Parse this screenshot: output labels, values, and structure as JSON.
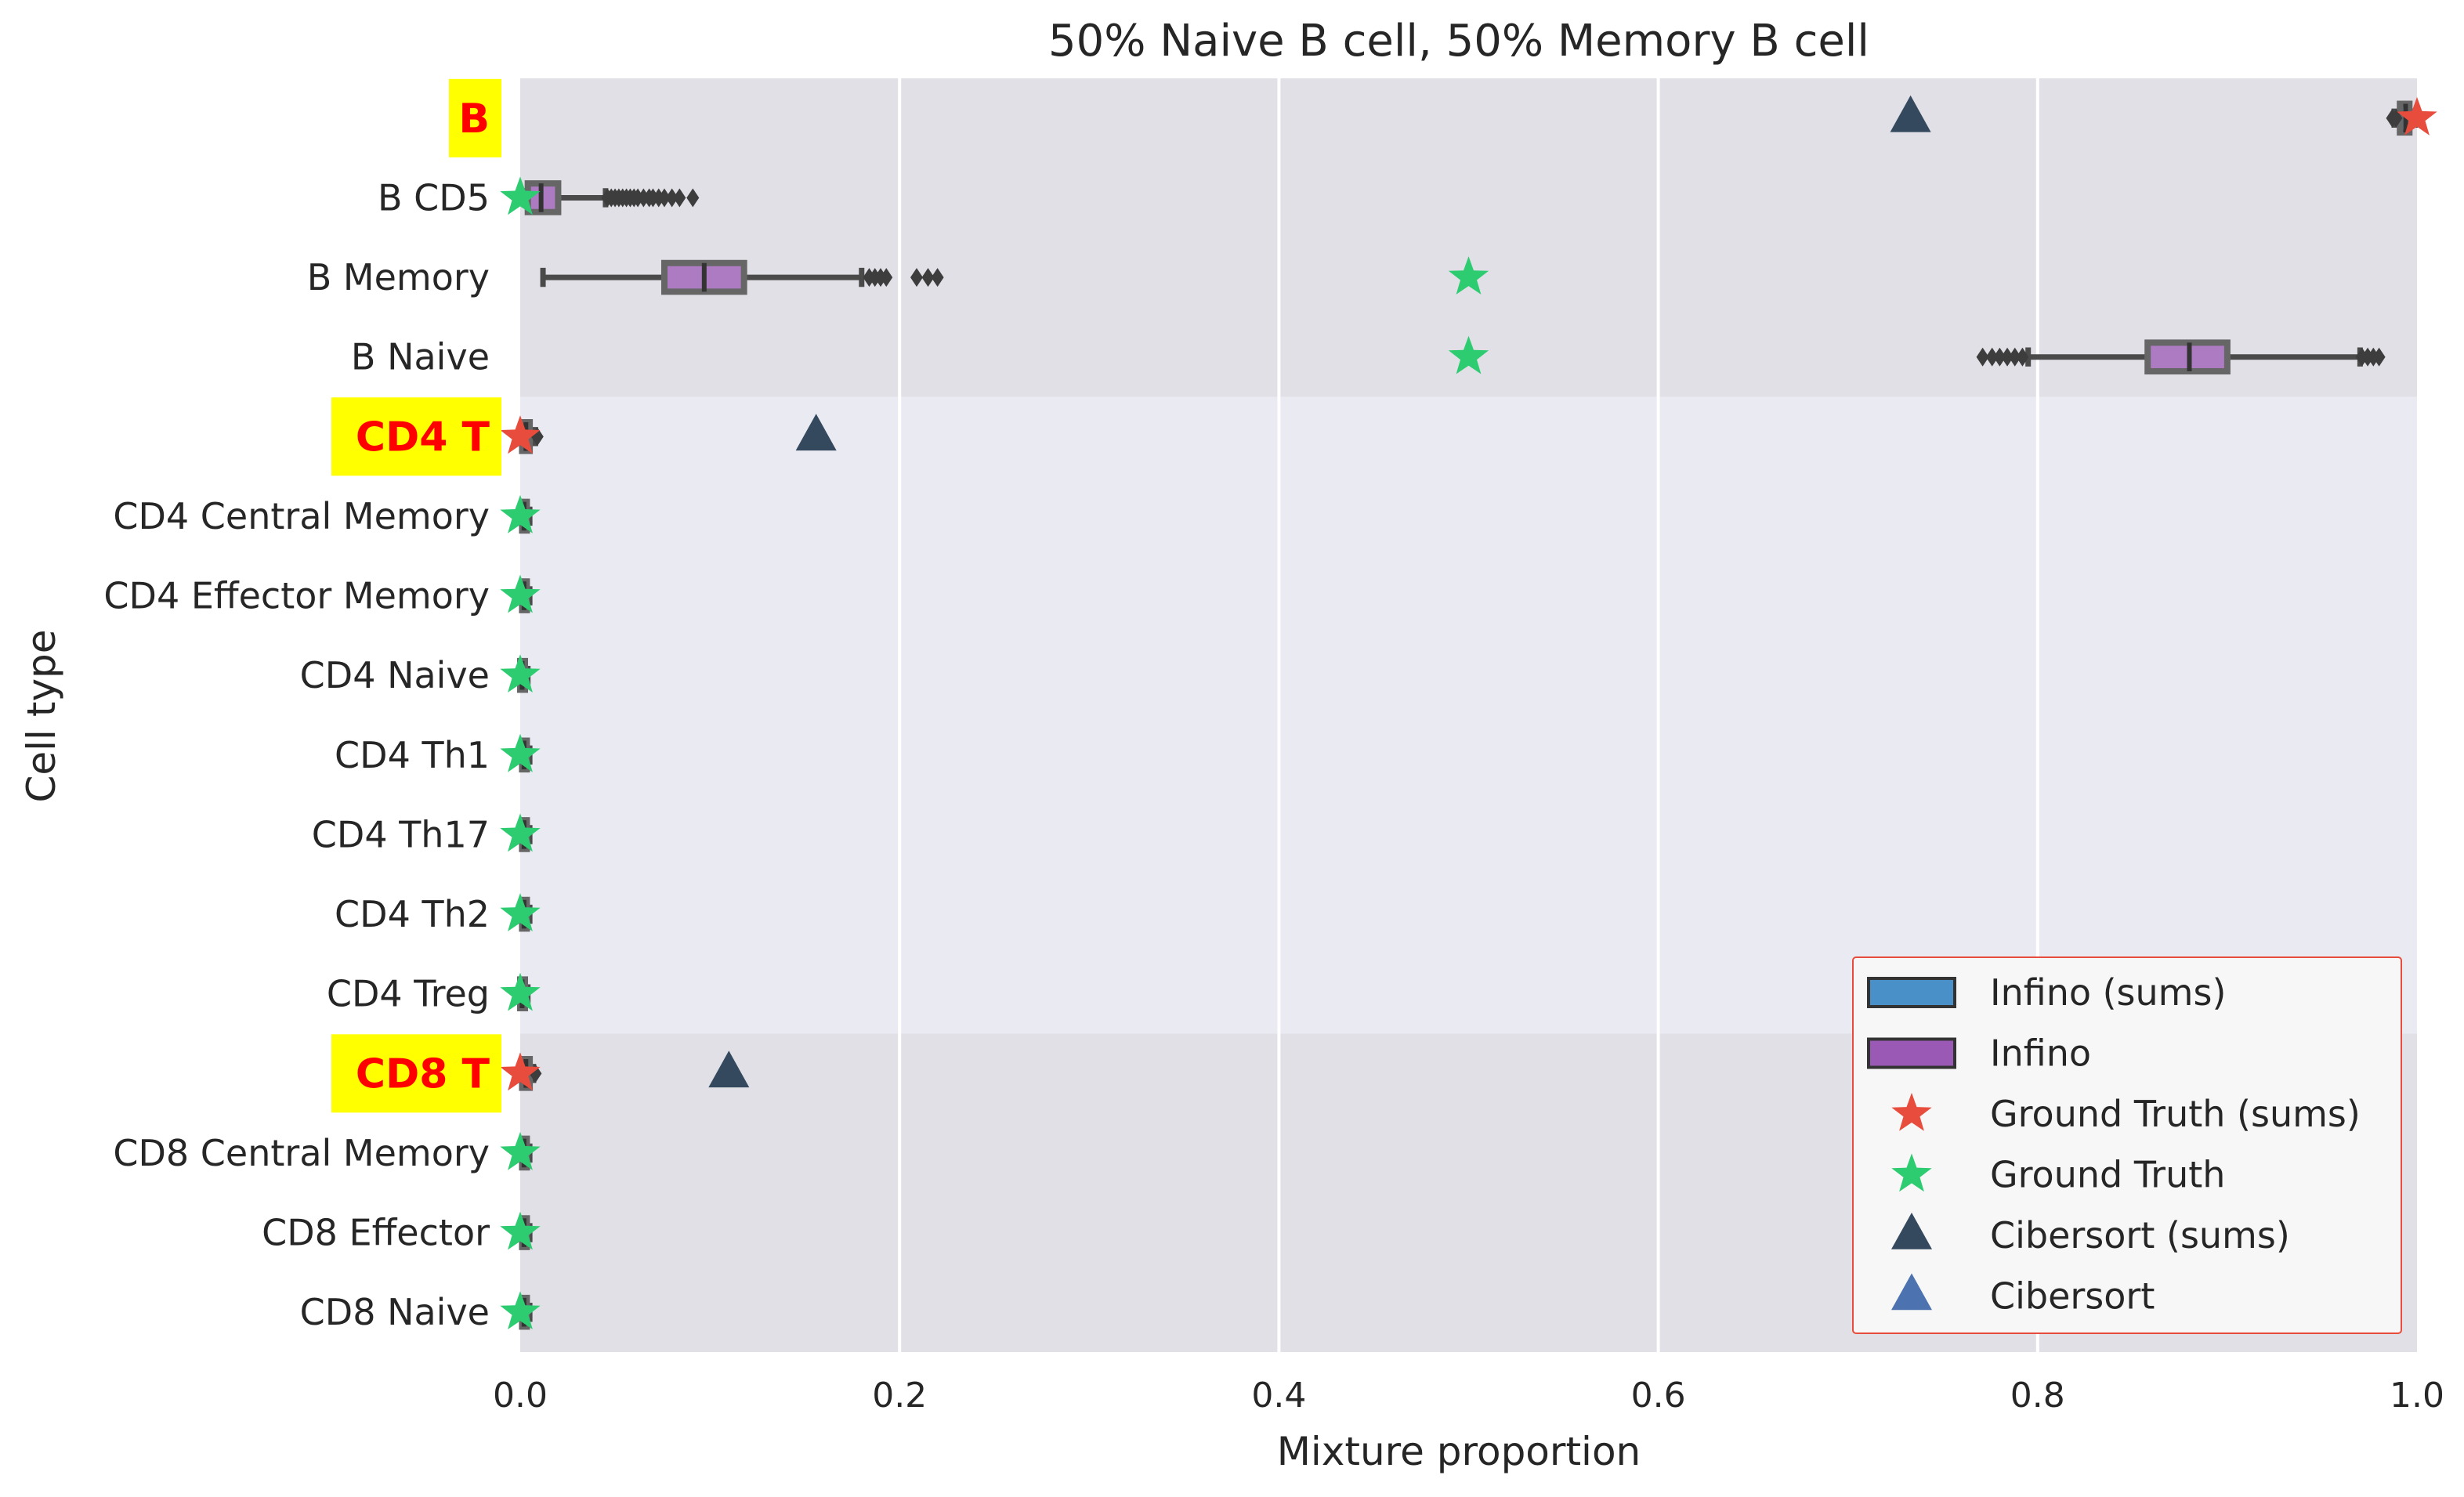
{
  "chart_data": {
    "type": "box",
    "orientation": "horizontal",
    "title": "50% Naive B cell, 50% Memory B cell",
    "xlabel": "Mixture proportion",
    "ylabel": "Cell type",
    "xlim": [
      0.0,
      1.0
    ],
    "xticks": [
      0.0,
      0.2,
      0.4,
      0.6,
      0.8,
      1.0
    ],
    "xtick_labels": [
      "0.0",
      "0.2",
      "0.4",
      "0.6",
      "0.8",
      "1.0"
    ],
    "grid": true,
    "legend_position": "bottom-right",
    "colors": {
      "infino_sums": "#4a90c8",
      "infino": "#9b59b6",
      "ground_truth_sums": "#e74c3c",
      "ground_truth": "#2ecc71",
      "cibersort_sums": "#34495e",
      "cibersort": "#4c72b0",
      "group_highlight": "#ffff00",
      "group_text": "#ff0000"
    },
    "categories": [
      {
        "label": "B",
        "group": true
      },
      {
        "label": "B CD5",
        "group": false
      },
      {
        "label": "B Memory",
        "group": false
      },
      {
        "label": "B Naive",
        "group": false
      },
      {
        "label": "CD4 T",
        "group": true
      },
      {
        "label": "CD4 Central Memory",
        "group": false
      },
      {
        "label": "CD4 Effector Memory",
        "group": false
      },
      {
        "label": "CD4 Naive",
        "group": false
      },
      {
        "label": "CD4 Th1",
        "group": false
      },
      {
        "label": "CD4 Th17",
        "group": false
      },
      {
        "label": "CD4 Th2",
        "group": false
      },
      {
        "label": "CD4 Treg",
        "group": false
      },
      {
        "label": "CD8 T",
        "group": true
      },
      {
        "label": "CD8 Central Memory",
        "group": false
      },
      {
        "label": "CD8 Effector",
        "group": false
      },
      {
        "label": "CD8 Naive",
        "group": false
      }
    ],
    "bands": [
      {
        "from": "B",
        "to": "B Naive",
        "shade": "dark"
      },
      {
        "from": "CD4 T",
        "to": "CD4 Treg",
        "shade": "light"
      },
      {
        "from": "CD8 T",
        "to": "CD8 Naive",
        "shade": "dark"
      }
    ],
    "boxes": [
      {
        "category": "B",
        "series": "Infino (sums)",
        "whisker_low": 0.988,
        "q1": 0.991,
        "median": 0.994,
        "q3": 0.996,
        "whisker_high": 0.999,
        "fliers": [
          0.987,
          0.989
        ]
      },
      {
        "category": "B CD5",
        "series": "Infino",
        "whisker_low": 0.002,
        "q1": 0.004,
        "median": 0.011,
        "q3": 0.02,
        "whisker_high": 0.045,
        "fliers": [
          0.046,
          0.048,
          0.05,
          0.052,
          0.054,
          0.056,
          0.058,
          0.06,
          0.062,
          0.065,
          0.068,
          0.07,
          0.073,
          0.076,
          0.08,
          0.084,
          0.091
        ]
      },
      {
        "category": "B Memory",
        "series": "Infino",
        "whisker_low": 0.012,
        "q1": 0.076,
        "median": 0.097,
        "q3": 0.118,
        "whisker_high": 0.18,
        "fliers": [
          0.184,
          0.187,
          0.19,
          0.193,
          0.209,
          0.215,
          0.22
        ]
      },
      {
        "category": "B Naive",
        "series": "Infino",
        "whisker_low": 0.795,
        "q1": 0.858,
        "median": 0.88,
        "q3": 0.9,
        "whisker_high": 0.97,
        "fliers": [
          0.771,
          0.776,
          0.78,
          0.784,
          0.788,
          0.792,
          0.971,
          0.974,
          0.977,
          0.98
        ]
      },
      {
        "category": "CD4 T",
        "series": "Infino (sums)",
        "whisker_low": 0.0,
        "q1": 0.001,
        "median": 0.003,
        "q3": 0.005,
        "whisker_high": 0.008,
        "fliers": [
          0.009
        ]
      },
      {
        "category": "CD4 Central Memory",
        "series": "Infino",
        "whisker_low": 0.0,
        "q1": 0.001,
        "median": 0.002,
        "q3": 0.003,
        "whisker_high": 0.005,
        "fliers": []
      },
      {
        "category": "CD4 Effector Memory",
        "series": "Infino",
        "whisker_low": 0.0,
        "q1": 0.001,
        "median": 0.002,
        "q3": 0.003,
        "whisker_high": 0.005,
        "fliers": []
      },
      {
        "category": "CD4 Naive",
        "series": "Infino",
        "whisker_low": 0.0,
        "q1": 0.0,
        "median": 0.001,
        "q3": 0.002,
        "whisker_high": 0.004,
        "fliers": []
      },
      {
        "category": "CD4 Th1",
        "series": "Infino",
        "whisker_low": 0.0,
        "q1": 0.001,
        "median": 0.002,
        "q3": 0.003,
        "whisker_high": 0.005,
        "fliers": []
      },
      {
        "category": "CD4 Th17",
        "series": "Infino",
        "whisker_low": 0.0,
        "q1": 0.001,
        "median": 0.002,
        "q3": 0.003,
        "whisker_high": 0.005,
        "fliers": []
      },
      {
        "category": "CD4 Th2",
        "series": "Infino",
        "whisker_low": 0.0,
        "q1": 0.001,
        "median": 0.002,
        "q3": 0.003,
        "whisker_high": 0.005,
        "fliers": []
      },
      {
        "category": "CD4 Treg",
        "series": "Infino",
        "whisker_low": 0.0,
        "q1": 0.0,
        "median": 0.001,
        "q3": 0.002,
        "whisker_high": 0.004,
        "fliers": []
      },
      {
        "category": "CD8 T",
        "series": "Infino (sums)",
        "whisker_low": 0.0,
        "q1": 0.001,
        "median": 0.003,
        "q3": 0.005,
        "whisker_high": 0.007,
        "fliers": [
          0.008
        ]
      },
      {
        "category": "CD8 Central Memory",
        "series": "Infino",
        "whisker_low": 0.0,
        "q1": 0.001,
        "median": 0.002,
        "q3": 0.003,
        "whisker_high": 0.005,
        "fliers": []
      },
      {
        "category": "CD8 Effector",
        "series": "Infino",
        "whisker_low": 0.0,
        "q1": 0.001,
        "median": 0.002,
        "q3": 0.003,
        "whisker_high": 0.005,
        "fliers": []
      },
      {
        "category": "CD8 Naive",
        "series": "Infino",
        "whisker_low": 0.0,
        "q1": 0.001,
        "median": 0.002,
        "q3": 0.003,
        "whisker_high": 0.005,
        "fliers": []
      }
    ],
    "points": [
      {
        "series": "Ground Truth (sums)",
        "marker": "star",
        "values": [
          {
            "category": "B",
            "x": 1.0
          },
          {
            "category": "CD4 T",
            "x": 0.0
          },
          {
            "category": "CD8 T",
            "x": 0.0
          }
        ]
      },
      {
        "series": "Ground Truth",
        "marker": "star",
        "values": [
          {
            "category": "B CD5",
            "x": 0.0
          },
          {
            "category": "B Memory",
            "x": 0.5
          },
          {
            "category": "B Naive",
            "x": 0.5
          },
          {
            "category": "CD4 Central Memory",
            "x": 0.0
          },
          {
            "category": "CD4 Effector Memory",
            "x": 0.0
          },
          {
            "category": "CD4 Naive",
            "x": 0.0
          },
          {
            "category": "CD4 Th1",
            "x": 0.0
          },
          {
            "category": "CD4 Th17",
            "x": 0.0
          },
          {
            "category": "CD4 Th2",
            "x": 0.0
          },
          {
            "category": "CD4 Treg",
            "x": 0.0
          },
          {
            "category": "CD8 Central Memory",
            "x": 0.0
          },
          {
            "category": "CD8 Effector",
            "x": 0.0
          },
          {
            "category": "CD8 Naive",
            "x": 0.0
          }
        ]
      },
      {
        "series": "Cibersort (sums)",
        "marker": "triangle",
        "values": [
          {
            "category": "B",
            "x": 0.733
          },
          {
            "category": "CD4 T",
            "x": 0.156
          },
          {
            "category": "CD8 T",
            "x": 0.11
          }
        ]
      }
    ],
    "legend": [
      {
        "label": "Infino (sums)",
        "marker": "box",
        "color_key": "infino_sums"
      },
      {
        "label": "Infino",
        "marker": "box",
        "color_key": "infino"
      },
      {
        "label": "Ground Truth (sums)",
        "marker": "star",
        "color_key": "ground_truth_sums"
      },
      {
        "label": "Ground Truth",
        "marker": "star",
        "color_key": "ground_truth"
      },
      {
        "label": "Cibersort (sums)",
        "marker": "triangle",
        "color_key": "cibersort_sums"
      },
      {
        "label": "Cibersort",
        "marker": "triangle",
        "color_key": "cibersort"
      }
    ]
  }
}
